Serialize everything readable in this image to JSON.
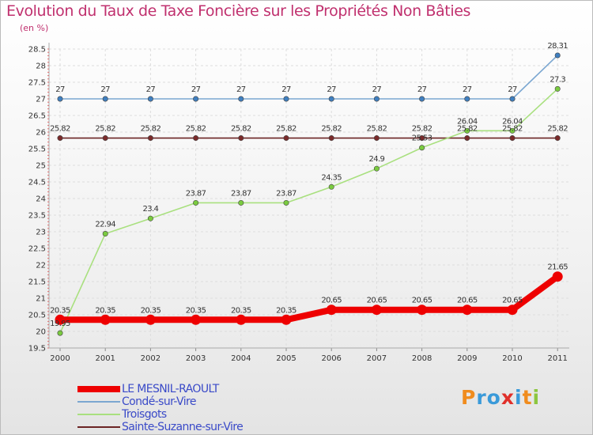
{
  "title": "Evolution du Taux de Taxe Foncière sur les Propriétés Non Bâties",
  "unit": "(en %)",
  "chart_data": {
    "type": "line",
    "title": "Evolution du Taux de Taxe Foncière sur les Propriétés Non Bâties",
    "ylabel": "(en %)",
    "xlabel": "",
    "ylim": [
      19.5,
      28.5
    ],
    "yticks": [
      "19.5",
      "20",
      "20.5",
      "21",
      "21.5",
      "22",
      "22.5",
      "23",
      "23.5",
      "24",
      "24.5",
      "25",
      "25.5",
      "26",
      "26.5",
      "27",
      "27.5",
      "28",
      "28.5"
    ],
    "categories": [
      "2000",
      "2001",
      "2002",
      "2003",
      "2004",
      "2005",
      "2006",
      "2007",
      "2008",
      "2009",
      "2010",
      "2011"
    ],
    "series": [
      {
        "name": "Sainte-Suzanne-sur-Vire",
        "color": "#6b2424",
        "marker": "#7a2a2a",
        "values": [
          25.82,
          25.82,
          25.82,
          25.82,
          25.82,
          25.82,
          25.82,
          25.82,
          25.82,
          25.82,
          25.82,
          25.82
        ],
        "labels": [
          "25.82",
          "25.82",
          "25.82",
          "25.82",
          "25.82",
          "25.82",
          "25.82",
          "25.82",
          "25.82",
          "25.82",
          "25.82",
          "25.82"
        ]
      },
      {
        "name": "Condé-sur-Vire",
        "color": "#7ba7d1",
        "marker": "#3f7fc0",
        "values": [
          27,
          27,
          27,
          27,
          27,
          27,
          27,
          27,
          27,
          27,
          27,
          28.31
        ],
        "labels": [
          "27",
          "27",
          "27",
          "27",
          "27",
          "27",
          "27",
          "27",
          "27",
          "27",
          "27",
          "28.31"
        ]
      },
      {
        "name": "Troisgots",
        "color": "#a9e07f",
        "marker": "#7acb3f",
        "values": [
          19.95,
          22.94,
          23.4,
          23.87,
          23.87,
          23.87,
          24.35,
          24.9,
          25.53,
          26.04,
          26.04,
          27.3
        ],
        "labels": [
          "19.95",
          "22.94",
          "23.4",
          "23.87",
          "23.87",
          "23.87",
          "24.35",
          "24.9",
          "25.53",
          "26.04",
          "26.04",
          "27.3"
        ]
      },
      {
        "name": "LE MESNIL-RAOULT",
        "color": "#ee0000",
        "marker": "#ee0000",
        "values": [
          20.35,
          20.35,
          20.35,
          20.35,
          20.35,
          20.35,
          20.65,
          20.65,
          20.65,
          20.65,
          20.65,
          21.65
        ],
        "labels": [
          "20.35",
          "20.35",
          "20.35",
          "20.35",
          "20.35",
          "20.35",
          "20.65",
          "20.65",
          "20.65",
          "20.65",
          "20.65",
          "21.65"
        ]
      }
    ]
  },
  "legend": [
    {
      "label": "LE MESNIL-RAOULT",
      "color": "#ee0000"
    },
    {
      "label": "Condé-sur-Vire",
      "color": "#7ba7d1"
    },
    {
      "label": "Troisgots",
      "color": "#a9e07f"
    },
    {
      "label": "Sainte-Suzanne-sur-Vire",
      "color": "#6b2424"
    }
  ],
  "logo": {
    "letters": [
      "P",
      "r",
      "o",
      "x",
      "i",
      "t",
      "i"
    ],
    "colors": [
      "#f08c1e",
      "#3a9ad9",
      "#3a9ad9",
      "#e0302a",
      "#3a9ad9",
      "#f08c1e",
      "#8cc63f"
    ]
  }
}
